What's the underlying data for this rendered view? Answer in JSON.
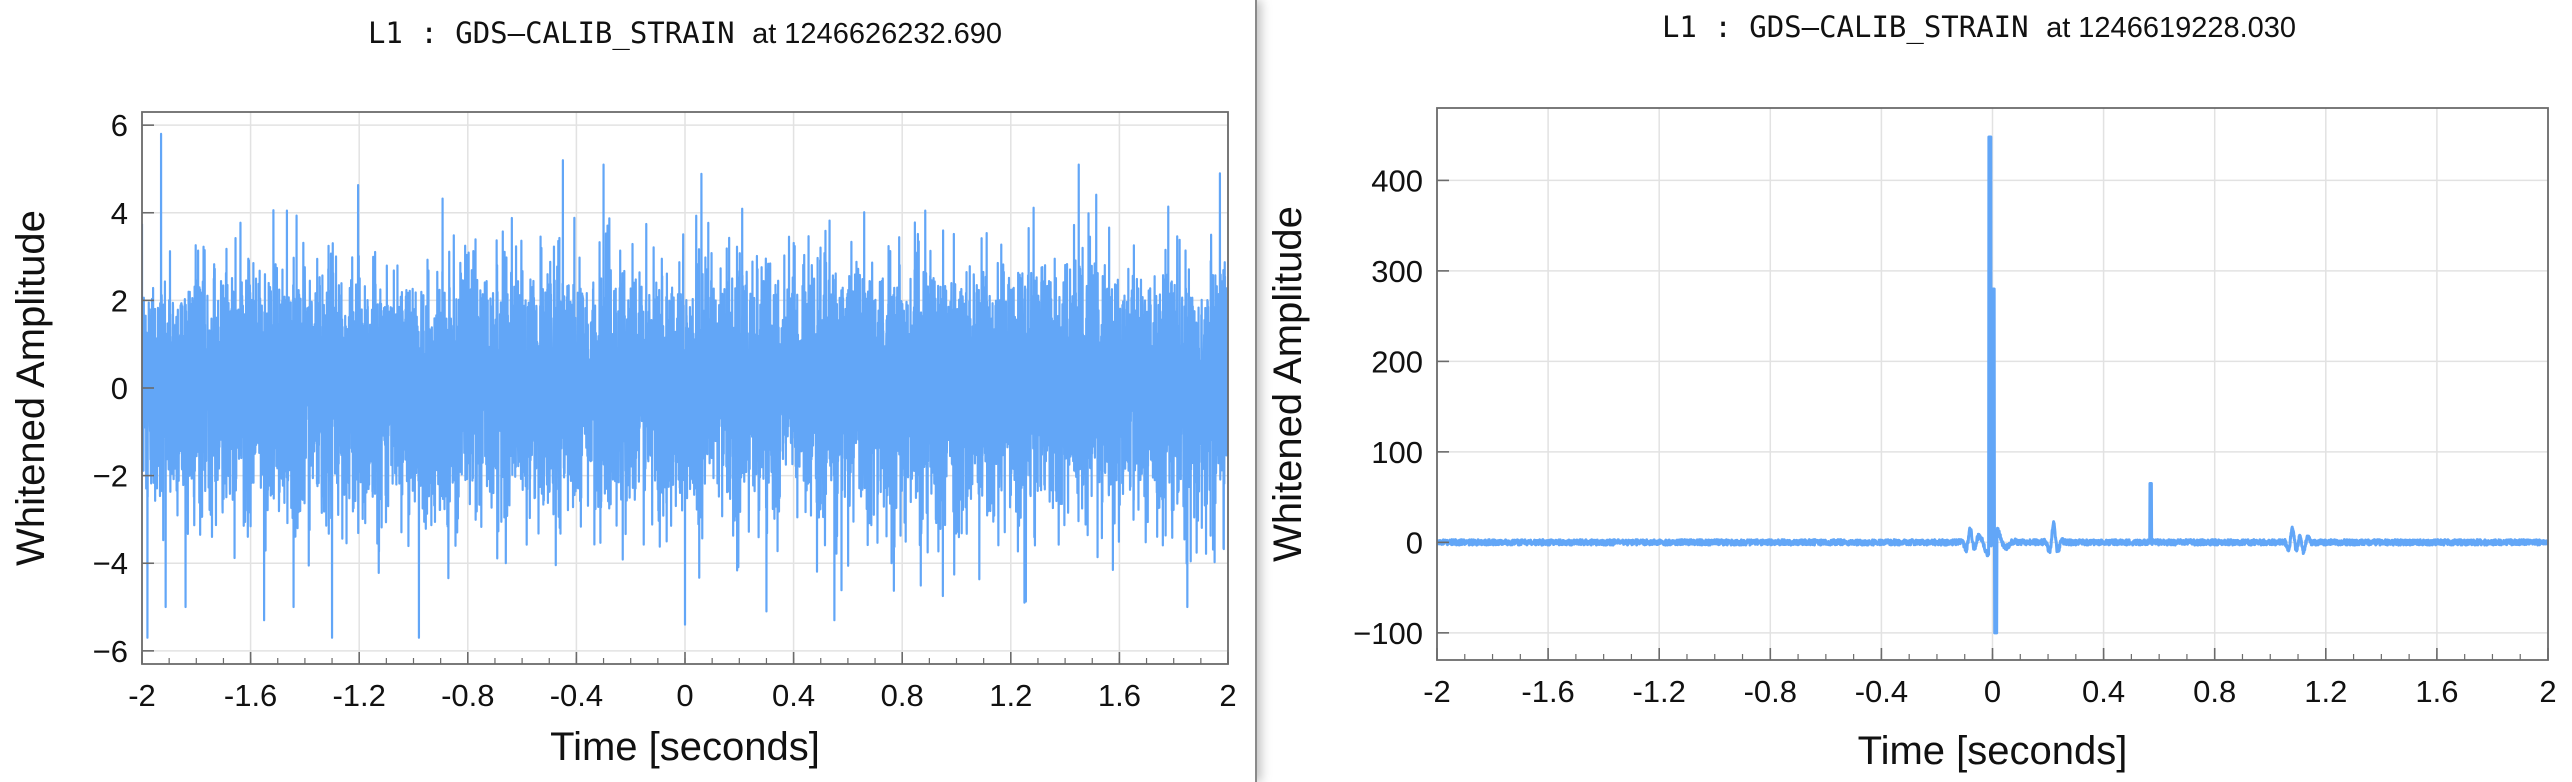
{
  "colors": {
    "series": "#62a6f7",
    "grid": "#e2e2e2",
    "axis": "#6b6b6b",
    "text": "#111111"
  },
  "chart_data": [
    {
      "type": "line",
      "title": "L1 : GDS-CALIB_STRAIN at 1246626232.690",
      "title_channel": "L1 : GDS–CALIB_STRAIN",
      "title_time": "at 1246626232.690",
      "xlabel": "Time [seconds]",
      "ylabel": "Whitened Amplitude",
      "xlim": [
        -2,
        2
      ],
      "ylim": [
        -6.3,
        6.3
      ],
      "x_ticks": [
        -2,
        -1.6,
        -1.2,
        -0.8,
        -0.4,
        0,
        0.4,
        0.8,
        1.2,
        1.6,
        2
      ],
      "x_tick_labels": [
        "-2",
        "-1.6",
        "-1.2",
        "-0.8",
        "-0.4",
        "0",
        "0.4",
        "0.8",
        "1.2",
        "1.6",
        "2"
      ],
      "y_ticks": [
        -6,
        -4,
        -2,
        0,
        2,
        4,
        6
      ],
      "y_tick_labels": [
        "−6",
        "−4",
        "−2",
        "0",
        "2",
        "4",
        "6"
      ],
      "grid": true,
      "legend": "none",
      "series": [
        {
          "kind": "gaussian-noise",
          "envelope": {
            "typical_peak": 3.6,
            "max": 5.8,
            "min": -5.8
          },
          "spikes": [
            {
              "x": -1.93,
              "y": 5.8
            },
            {
              "x": -1.98,
              "y": -5.7
            },
            {
              "x": -1.55,
              "y": -5.3
            },
            {
              "x": -1.3,
              "y": -5.7
            },
            {
              "x": -0.98,
              "y": -5.7
            },
            {
              "x": -0.45,
              "y": 5.2
            },
            {
              "x": -0.3,
              "y": 5.1
            },
            {
              "x": 0.0,
              "y": -5.4
            },
            {
              "x": 0.3,
              "y": -5.1
            },
            {
              "x": 0.55,
              "y": -5.3
            },
            {
              "x": 1.45,
              "y": 5.1
            },
            {
              "x": 1.97,
              "y": 4.9
            },
            {
              "x": 1.85,
              "y": -5.0
            },
            {
              "x": 1.25,
              "y": -4.9
            }
          ]
        }
      ]
    },
    {
      "type": "line",
      "title": "L1 : GDS-CALIB_STRAIN at 1246619228.030",
      "title_channel": "L1 : GDS–CALIB_STRAIN",
      "title_time": "at 1246619228.030",
      "xlabel": "Time [seconds]",
      "ylabel": "Whitened Amplitude",
      "xlim": [
        -2,
        2
      ],
      "ylim": [
        -130,
        480
      ],
      "x_ticks": [
        -2,
        -1.6,
        -1.2,
        -0.8,
        -0.4,
        0,
        0.4,
        0.8,
        1.2,
        1.6,
        2
      ],
      "x_tick_labels": [
        "-2",
        "-1.6",
        "-1.2",
        "-0.8",
        "-0.4",
        "0",
        "0.4",
        "0.8",
        "1.2",
        "1.6",
        "2"
      ],
      "y_ticks": [
        -100,
        0,
        100,
        200,
        300,
        400
      ],
      "y_tick_labels": [
        "−100",
        "0",
        "100",
        "200",
        "300",
        "400"
      ],
      "grid": true,
      "legend": "none",
      "series": [
        {
          "kind": "glitch",
          "baseline_noise": 3,
          "main_peak": {
            "x": -0.01,
            "y": 448
          },
          "main_trough": {
            "x": 0.0,
            "y": -100
          },
          "secondary_peak": {
            "x": 0.57,
            "y": 65
          },
          "small_bursts": [
            {
              "x": -0.08,
              "y": 15
            },
            {
              "x": 0.22,
              "y": 20
            },
            {
              "x": 1.08,
              "y": 15
            },
            {
              "x": 1.12,
              "y": -10
            }
          ]
        }
      ]
    }
  ]
}
